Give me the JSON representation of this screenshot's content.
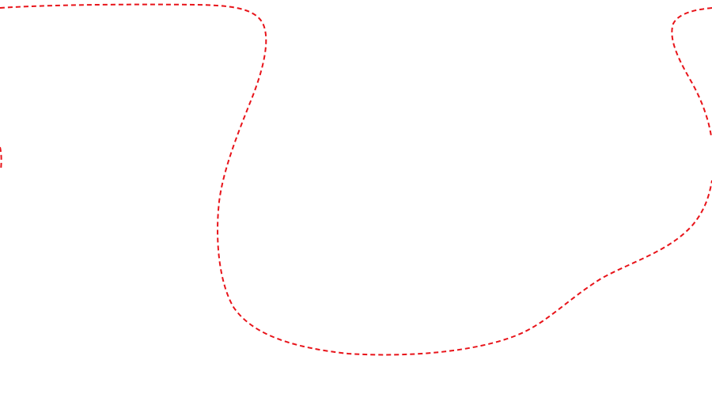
{
  "outline": {
    "color": "#e8141a",
    "style": "dashed"
  }
}
